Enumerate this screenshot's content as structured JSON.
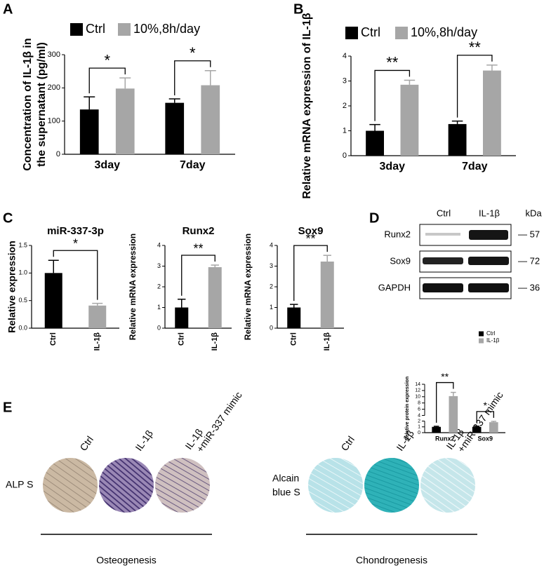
{
  "panels": [
    "A",
    "B",
    "C",
    "D",
    "E"
  ],
  "chart_data": [
    {
      "type": "bar",
      "y_label": [
        "Concentration of IL-1β in",
        "the supernatant (pg/ml)"
      ],
      "categories": [
        "3day",
        "7day"
      ],
      "series": [
        {
          "name": "Ctrl",
          "color": "#000000",
          "values": [
            135,
            155
          ],
          "errors": [
            38,
            12
          ]
        },
        {
          "name": "10%,8h/day",
          "color": "#a6a6a6",
          "values": [
            198,
            208
          ],
          "errors": [
            32,
            44
          ]
        }
      ],
      "significance": [
        "*",
        "*"
      ],
      "ylim": [
        0,
        300
      ],
      "yticks": [
        0,
        100,
        200,
        300
      ]
    },
    {
      "type": "bar",
      "y_label": [
        "Relative mRNA expression of IL-1β"
      ],
      "categories": [
        "3day",
        "7day"
      ],
      "series": [
        {
          "name": "Ctrl",
          "color": "#000000",
          "values": [
            1.0,
            1.27
          ],
          "errors": [
            0.25,
            0.12
          ]
        },
        {
          "name": "10%,8h/day",
          "color": "#a6a6a6",
          "values": [
            2.85,
            3.42
          ],
          "errors": [
            0.18,
            0.22
          ]
        }
      ],
      "significance": [
        "**",
        "**"
      ],
      "ylim": [
        0,
        4
      ],
      "yticks": [
        0,
        1,
        2,
        3,
        4
      ]
    },
    {
      "type": "bar",
      "title": "miR-337-3p",
      "y_label": [
        "Relative expression"
      ],
      "categories": [
        "Ctrl",
        "IL-1β"
      ],
      "series": [
        {
          "colors": [
            "#000000",
            "#a6a6a6"
          ],
          "values": [
            1.0,
            0.41
          ],
          "errors": [
            0.23,
            0.04
          ]
        }
      ],
      "significance": "*",
      "ylim": [
        0,
        1.5
      ],
      "yticks": [
        {
          "value": 0,
          "label": "0.0"
        },
        0.5,
        {
          "value": 1,
          "label": "1.0"
        },
        1.5
      ]
    },
    {
      "type": "bar",
      "title": "Runx2",
      "y_label": [
        "Relative mRNA expression"
      ],
      "categories": [
        "Ctrl",
        "IL-1β"
      ],
      "series": [
        {
          "colors": [
            "#000000",
            "#a6a6a6"
          ],
          "values": [
            1.0,
            2.95
          ],
          "errors": [
            0.4,
            0.1
          ]
        }
      ],
      "significance": "**",
      "ylim": [
        0,
        4
      ],
      "yticks": [
        0,
        1,
        2,
        3,
        4
      ]
    },
    {
      "type": "bar",
      "title": "Sox9",
      "y_label": [
        "Relative mRNA expression"
      ],
      "categories": [
        "Ctrl",
        "IL-1β"
      ],
      "series": [
        {
          "colors": [
            "#000000",
            "#a6a6a6"
          ],
          "values": [
            1.0,
            3.22
          ],
          "errors": [
            0.15,
            0.3
          ]
        }
      ],
      "significance": "**",
      "ylim": [
        0,
        4
      ],
      "yticks": [
        0,
        1,
        2,
        3,
        4
      ]
    },
    {
      "type": "bar",
      "y_label": [
        "Relative protein expression"
      ],
      "categories": [
        "Runx2",
        "Sox9"
      ],
      "series": [
        {
          "name": "Ctrl",
          "color": "#000000",
          "values": [
            1.0,
            1.0
          ],
          "errors": [
            0.1,
            0.12
          ]
        },
        {
          "name": "IL-1β",
          "color": "#a6a6a6",
          "values": [
            10.2,
            1.8
          ],
          "errors": [
            1.2,
            0.15
          ]
        }
      ],
      "significance": [
        "**",
        "*"
      ],
      "ylim": [
        0,
        14
      ],
      "ybreak": [
        2,
        4
      ],
      "yticks": [
        0,
        1,
        2,
        4,
        6,
        8,
        10,
        12,
        14
      ]
    }
  ],
  "blot": {
    "lanes": [
      "Ctrl",
      "IL-1β"
    ],
    "unit": "kDa",
    "rows": [
      {
        "name": "Runx2",
        "size": "— 57"
      },
      {
        "name": "Sox9",
        "size": "— 72"
      },
      {
        "name": "GAPDH",
        "size": "— 36"
      }
    ]
  },
  "staining": {
    "groups": [
      "Ctrl",
      "IL-1β"
    ],
    "mimic": [
      "IL-1β",
      "+miR-337 mimic"
    ],
    "osteo_label": "ALP S",
    "chondro_label": [
      "Alcain",
      "blue S"
    ],
    "osteo": "Osteogenesis",
    "chondro": "Chondrogenesis"
  }
}
